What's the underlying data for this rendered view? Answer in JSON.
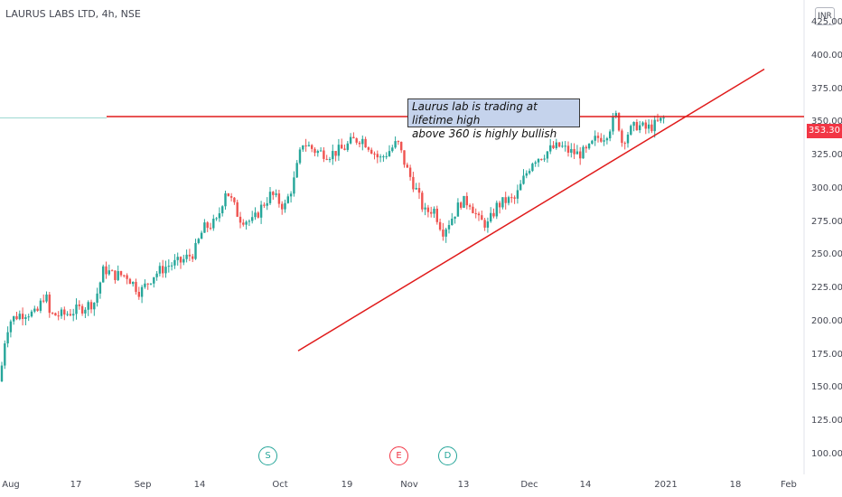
{
  "header": {
    "title": "LAURUS LABS LTD, 4h, NSE",
    "currency": "INR"
  },
  "annotation": {
    "line1": "Laurus lab is trading at lifetime high",
    "line2": "above 360 is highly bullish"
  },
  "events": [
    {
      "label": "S",
      "color": "#26a69a"
    },
    {
      "label": "E",
      "color": "#f23645"
    },
    {
      "label": "D",
      "color": "#26a69a"
    }
  ],
  "colors": {
    "up": "#26a69a",
    "down": "#ef5350",
    "drawing": "#e01b1b",
    "label_bg": "#f23645"
  },
  "chart_data": {
    "type": "candlestick",
    "title": "LAURUS LABS LTD, 4h, NSE",
    "ylim": [
      85,
      442
    ],
    "y_ticks": [
      100,
      125,
      150,
      175,
      200,
      225,
      250,
      275,
      300,
      325,
      350,
      375,
      400,
      425
    ],
    "y_tick_labels": [
      "100.00",
      "125.00",
      "150.00",
      "175.00",
      "200.00",
      "225.00",
      "250.00",
      "275.00",
      "300.00",
      "325.00",
      "350.00",
      "375.00",
      "400.00",
      "425.00"
    ],
    "x_tick_labels": [
      "Aug",
      "17",
      "Sep",
      "14",
      "Oct",
      "19",
      "Nov",
      "13",
      "Dec",
      "14",
      "2021",
      "18",
      "Feb"
    ],
    "last_price": "353.30",
    "close_path": [
      [
        0,
        155
      ],
      [
        5,
        185
      ],
      [
        10,
        200
      ],
      [
        20,
        205
      ],
      [
        30,
        207
      ],
      [
        40,
        205
      ],
      [
        50,
        222
      ],
      [
        55,
        205
      ],
      [
        70,
        205
      ],
      [
        90,
        210
      ],
      [
        105,
        215
      ],
      [
        115,
        240
      ],
      [
        125,
        235
      ],
      [
        140,
        235
      ],
      [
        155,
        222
      ],
      [
        170,
        235
      ],
      [
        185,
        242
      ],
      [
        200,
        245
      ],
      [
        215,
        252
      ],
      [
        225,
        270
      ],
      [
        240,
        275
      ],
      [
        250,
        300
      ],
      [
        265,
        278
      ],
      [
        280,
        275
      ],
      [
        290,
        287
      ],
      [
        300,
        296
      ],
      [
        315,
        286
      ],
      [
        325,
        305
      ],
      [
        335,
        335
      ],
      [
        350,
        328
      ],
      [
        365,
        326
      ],
      [
        380,
        330
      ],
      [
        390,
        336
      ],
      [
        400,
        338
      ],
      [
        410,
        331
      ],
      [
        420,
        322
      ],
      [
        430,
        328
      ],
      [
        440,
        335
      ],
      [
        450,
        315
      ],
      [
        460,
        300
      ],
      [
        470,
        282
      ],
      [
        480,
        285
      ],
      [
        490,
        268
      ],
      [
        500,
        278
      ],
      [
        510,
        290
      ],
      [
        520,
        290
      ],
      [
        530,
        276
      ],
      [
        540,
        273
      ],
      [
        550,
        287
      ],
      [
        560,
        291
      ],
      [
        570,
        292
      ],
      [
        580,
        308
      ],
      [
        590,
        322
      ],
      [
        600,
        325
      ],
      [
        610,
        330
      ],
      [
        620,
        332
      ],
      [
        630,
        328
      ],
      [
        640,
        326
      ],
      [
        650,
        328
      ],
      [
        660,
        338
      ],
      [
        670,
        340
      ],
      [
        678,
        350
      ],
      [
        683,
        356
      ],
      [
        688,
        335
      ],
      [
        695,
        342
      ],
      [
        705,
        348
      ],
      [
        715,
        345
      ],
      [
        725,
        348
      ],
      [
        735,
        353
      ]
    ],
    "horizontal_line": {
      "level": 354.3
    },
    "trend_line": {
      "from": {
        "x_index": 330,
        "price": 178
      },
      "to": {
        "x_index": 846,
        "price": 390
      }
    }
  }
}
